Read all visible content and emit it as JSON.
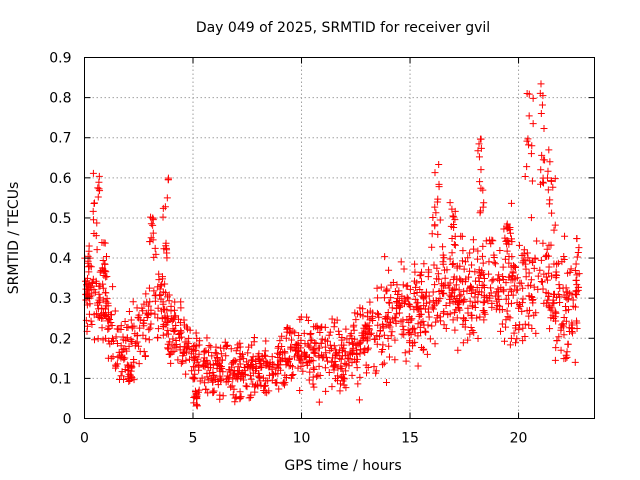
{
  "chart_data": {
    "type": "scatter",
    "title": "Day 049 of 2025, SRMTID for receiver gvil",
    "xlabel": "GPS time / hours",
    "ylabel": "SRMTID / TECUs",
    "xlim": [
      0,
      23.5
    ],
    "ylim": [
      0,
      0.9
    ],
    "x_ticks": [
      0,
      5,
      10,
      15,
      20
    ],
    "x_tick_labels": [
      "0",
      "5",
      "10",
      "15",
      "20"
    ],
    "y_ticks": [
      0,
      0.1,
      0.2,
      0.3,
      0.4,
      0.5,
      0.6,
      0.7,
      0.8,
      0.9
    ],
    "y_tick_labels": [
      "0",
      "0.1",
      "0.2",
      "0.3",
      "0.4",
      "0.5",
      "0.6",
      "0.7",
      "0.8",
      "0.9"
    ],
    "grid": true,
    "marker": "plus",
    "color": "#ff0000",
    "series": [
      {
        "name": "SRMTID",
        "trend": [
          [
            0.0,
            0.3
          ],
          [
            0.5,
            0.32
          ],
          [
            1.0,
            0.26
          ],
          [
            1.5,
            0.2
          ],
          [
            2.0,
            0.18
          ],
          [
            2.5,
            0.22
          ],
          [
            3.0,
            0.26
          ],
          [
            3.5,
            0.28
          ],
          [
            4.0,
            0.22
          ],
          [
            4.5,
            0.2
          ],
          [
            5.0,
            0.16
          ],
          [
            5.5,
            0.13
          ],
          [
            6.0,
            0.12
          ],
          [
            6.5,
            0.11
          ],
          [
            7.0,
            0.11
          ],
          [
            7.5,
            0.12
          ],
          [
            8.0,
            0.12
          ],
          [
            8.5,
            0.12
          ],
          [
            9.0,
            0.14
          ],
          [
            9.5,
            0.17
          ],
          [
            10.0,
            0.16
          ],
          [
            10.5,
            0.16
          ],
          [
            11.0,
            0.17
          ],
          [
            11.5,
            0.16
          ],
          [
            12.0,
            0.15
          ],
          [
            12.5,
            0.18
          ],
          [
            13.0,
            0.2
          ],
          [
            13.5,
            0.22
          ],
          [
            14.0,
            0.26
          ],
          [
            14.5,
            0.27
          ],
          [
            15.0,
            0.26
          ],
          [
            15.5,
            0.27
          ],
          [
            16.0,
            0.3
          ],
          [
            16.5,
            0.32
          ],
          [
            17.0,
            0.3
          ],
          [
            17.5,
            0.31
          ],
          [
            18.0,
            0.32
          ],
          [
            18.5,
            0.35
          ],
          [
            19.0,
            0.34
          ],
          [
            19.5,
            0.33
          ],
          [
            20.0,
            0.32
          ],
          [
            20.5,
            0.34
          ],
          [
            21.0,
            0.36
          ],
          [
            21.5,
            0.32
          ],
          [
            22.0,
            0.26
          ],
          [
            22.5,
            0.28
          ],
          [
            22.7,
            0.3
          ]
        ],
        "spread": [
          [
            0.0,
            0.06
          ],
          [
            2.0,
            0.05
          ],
          [
            5.0,
            0.04
          ],
          [
            9.0,
            0.04
          ],
          [
            12.0,
            0.05
          ],
          [
            14.0,
            0.06
          ],
          [
            17.0,
            0.07
          ],
          [
            20.0,
            0.08
          ],
          [
            22.7,
            0.07
          ]
        ],
        "bursts": [
          {
            "x": [
              0.0,
              0.3
            ],
            "y": [
              0.3,
              0.4
            ]
          },
          {
            "x": [
              0.4,
              0.7
            ],
            "y": [
              0.45,
              0.62
            ]
          },
          {
            "x": [
              0.8,
              1.1
            ],
            "y": [
              0.35,
              0.44
            ]
          },
          {
            "x": [
              2.0,
              2.2
            ],
            "y": [
              0.09,
              0.14
            ]
          },
          {
            "x": [
              3.0,
              3.3
            ],
            "y": [
              0.4,
              0.51
            ]
          },
          {
            "x": [
              3.6,
              3.9
            ],
            "y": [
              0.4,
              0.6
            ]
          },
          {
            "x": [
              5.0,
              5.2
            ],
            "y": [
              0.03,
              0.08
            ]
          },
          {
            "x": [
              16.0,
              16.4
            ],
            "y": [
              0.45,
              0.66
            ]
          },
          {
            "x": [
              16.8,
              17.1
            ],
            "y": [
              0.4,
              0.56
            ]
          },
          {
            "x": [
              18.1,
              18.4
            ],
            "y": [
              0.5,
              0.7
            ]
          },
          {
            "x": [
              19.3,
              19.7
            ],
            "y": [
              0.4,
              0.55
            ]
          },
          {
            "x": [
              20.3,
              20.7
            ],
            "y": [
              0.5,
              0.84
            ]
          },
          {
            "x": [
              21.0,
              21.2
            ],
            "y": [
              0.55,
              0.84
            ]
          },
          {
            "x": [
              21.3,
              21.7
            ],
            "y": [
              0.4,
              0.7
            ]
          },
          {
            "x": [
              22.6,
              22.8
            ],
            "y": [
              0.3,
              0.45
            ]
          }
        ]
      }
    ]
  }
}
